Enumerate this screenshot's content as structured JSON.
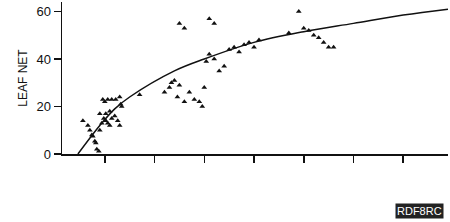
{
  "chart_data": {
    "type": "scatter",
    "y_label": "LEAF NET",
    "xlim": [
      0.14,
      7.9
    ],
    "xticks": [
      1,
      2,
      3,
      4,
      5,
      6,
      7
    ],
    "ylim": [
      0,
      64
    ],
    "yticks": [
      0,
      20,
      40,
      60
    ],
    "tick_labels": "y",
    "grid": false,
    "series": [
      {
        "type": "scatter",
        "marker": "triangle-up",
        "color": "#111111",
        "x": [
          0.56,
          0.66,
          0.7,
          0.76,
          0.8,
          0.84,
          0.88,
          0.74,
          0.82,
          0.9,
          0.94,
          0.98,
          1.02,
          1.06,
          1.1,
          1.14,
          1.2,
          1.26,
          1.3,
          1.0,
          1.06,
          1.14,
          1.22,
          1.3,
          0.96,
          1.32,
          1.34,
          1.1,
          1.02,
          0.9,
          1.7,
          2.2,
          2.3,
          2.34,
          2.4,
          2.46,
          2.6,
          2.7,
          2.8,
          2.9,
          2.96,
          2.5,
          3.0,
          3.04,
          3.1,
          3.2,
          3.3,
          3.4,
          3.5,
          3.6,
          3.7,
          3.8,
          3.9,
          4.0,
          4.1,
          2.5,
          2.6,
          3.1,
          3.2,
          4.7,
          4.9,
          5.0,
          5.1,
          5.2,
          5.3,
          5.4,
          5.5,
          5.6
        ],
        "values": [
          14,
          12,
          10,
          7.5,
          5.4,
          2,
          1.2,
          8,
          4.6,
          10,
          13,
          15,
          14,
          13,
          12,
          15,
          16,
          14,
          12,
          22,
          23,
          23,
          23,
          24,
          23,
          21,
          20,
          18,
          17,
          17,
          25,
          26,
          28,
          30,
          31,
          24,
          22,
          26,
          23,
          22,
          20,
          29,
          28,
          39,
          42,
          40,
          35,
          37,
          44,
          45,
          43,
          46,
          47,
          45,
          48,
          55,
          53,
          57,
          55,
          51,
          60,
          53,
          52,
          50,
          49,
          47,
          45,
          45
        ]
      },
      {
        "type": "line",
        "line_style": "solid",
        "color": "#111111",
        "x": [
          0.46,
          0.9,
          1.2,
          1.5,
          2.4,
          3.0,
          4.0,
          5.0,
          6.0,
          7.0,
          7.9
        ],
        "values": [
          0,
          12,
          19,
          24,
          35,
          40,
          47,
          51.5,
          55,
          58.5,
          61
        ]
      }
    ],
    "annotations": [
      {
        "text": "RDF8RC"
      }
    ]
  }
}
